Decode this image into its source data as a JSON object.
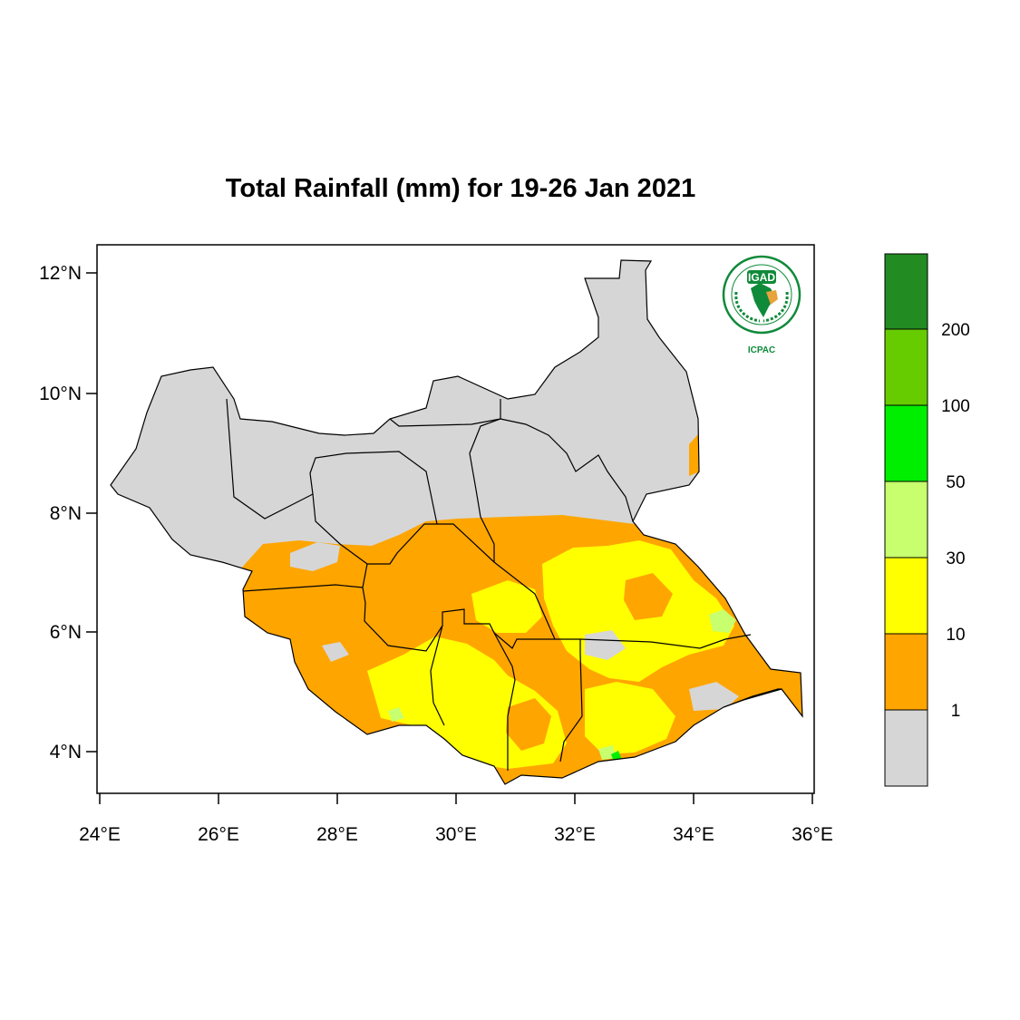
{
  "title": "Total Rainfall (mm) for 19-26 Jan 2021",
  "map": {
    "x_ticks": [
      "24°E",
      "26°E",
      "28°E",
      "30°E",
      "32°E",
      "36°E",
      "34°E"
    ],
    "y_ticks": [
      "12°N",
      "10°N",
      "8°N",
      "6°N",
      "4°N"
    ]
  },
  "legend": {
    "levels": [
      "1",
      "10",
      "30",
      "50",
      "100",
      "200"
    ],
    "colors": [
      "#d6d6d6",
      "#ffa500",
      "#ffff00",
      "#c8ff6e",
      "#00ee00",
      "#66cc00",
      "#228b22"
    ]
  },
  "logo": {
    "name": "IGAD",
    "sub": "ICPAC",
    "color": "#0f8a3a",
    "accent": "#e8a33c"
  }
}
